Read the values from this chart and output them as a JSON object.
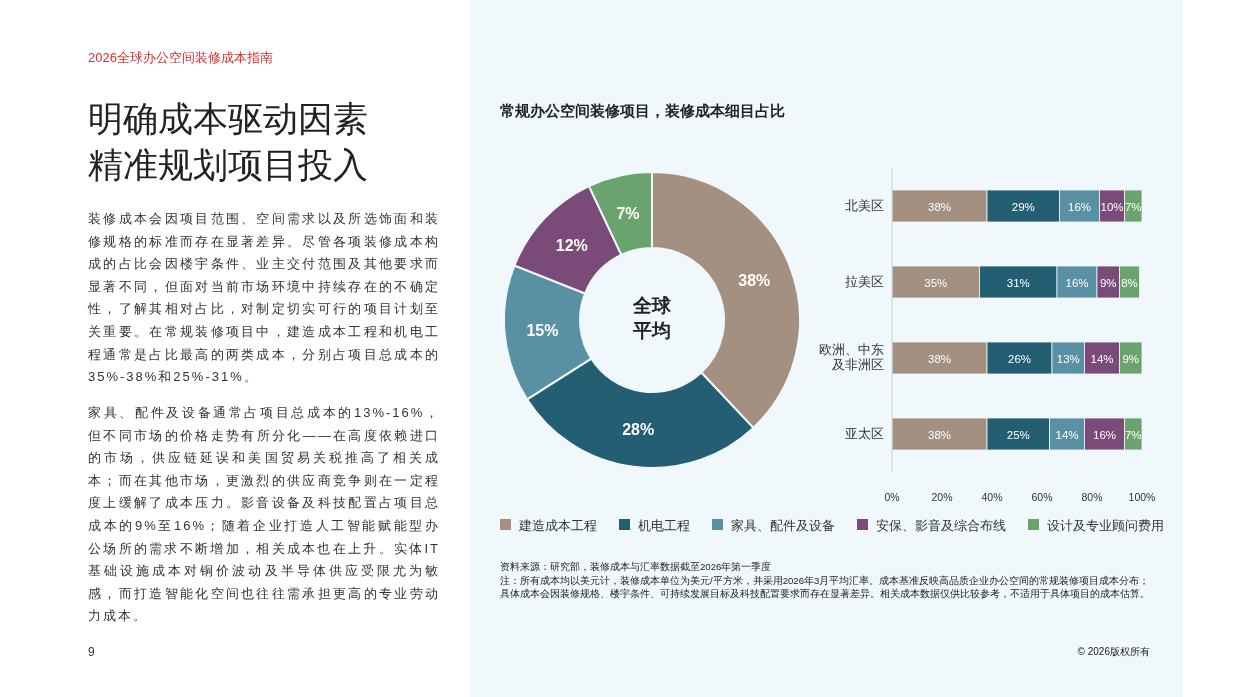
{
  "chart_data": [
    {
      "type": "other",
      "subtitle": "2026全球办公空间装修成本指南",
      "title": "明确成本驱动因素精准规划项目投入",
      "annotations": [
        "装修成本会因项目范围、空间需求以及所选饰面和装修规格的标准而存在显著差异。尽管各项装修成本构成的占比会因楼宇条件、业主交付范围及其他要求而显著不同，但面对当前市场环境中持续存在的不确定性，了解其相对占比，对制定切实可行的项目计划至关重要。在常规装修项目中，建造成本工程和机电工程通常是占比最高的两类成本，分别占项目总成本的35%-38%和25%-31%。",
        "家具、配件及设备通常占项目总成本的13%-16%，但不同市场的价格走势有所分化——在高度依赖进口的市场，供应链延误和美国贸易关税推高了相关成本；而在其他市场，更激烈的供应商竞争则在一定程度上缓解了成本压力。影音设备及科技配置占项目总成本的9%至16%；随着企业打造人工智能赋能型办公场所的需求不断增加，相关成本也在上升。实体IT基础设施成本对铜价波动及半导体供应受限尤为敏感，而打造智能化空间也往往需承担更高的专业劳动力成本。",
        "9"
      ]
    },
    {
      "type": "donut",
      "title": "常规办公空间装修项目，装修成本细目占比",
      "annotations": [
        "全球平均"
      ],
      "legend": "bottom",
      "categories": [
        "建造成本工程",
        "机电工程",
        "家具、配件及设备",
        "安保、影音及综合布线",
        "设计及专业顾问费用"
      ],
      "values": [
        38,
        28,
        15,
        12,
        7
      ],
      "value_labels": [
        "38%",
        "28%",
        "15%",
        "12%",
        "7%"
      ],
      "colors": [
        "#a39081",
        "#245e73",
        "#5a90a3",
        "#7a4a78",
        "#6aa36d"
      ]
    },
    {
      "type": "bar",
      "orientation": "horizontal",
      "stacked": true,
      "categories": [
        "北美区",
        "拉美区",
        "欧洲、中东及非洲区",
        "亚太区"
      ],
      "xlim": [
        0,
        100
      ],
      "xticks": [
        {
          "value": 0,
          "label": "0%"
        },
        {
          "value": 20,
          "label": "20%"
        },
        {
          "value": 40,
          "label": "40%"
        },
        {
          "value": 60,
          "label": "60%"
        },
        {
          "value": 80,
          "label": "80%"
        },
        {
          "value": 100,
          "label": "100%"
        }
      ],
      "series": [
        {
          "color": "#a39081",
          "values": [
            38,
            35,
            38,
            38
          ],
          "value_labels": [
            "38%",
            "35%",
            "38%",
            "38%"
          ]
        },
        {
          "color": "#245e73",
          "values": [
            29,
            31,
            26,
            25
          ],
          "value_labels": [
            "29%",
            "31%",
            "26%",
            "25%"
          ]
        },
        {
          "color": "#5a90a3",
          "values": [
            16,
            16,
            13,
            14
          ],
          "value_labels": [
            "16%",
            "16%",
            "13%",
            "14%"
          ]
        },
        {
          "color": "#7a4a78",
          "values": [
            10,
            9,
            14,
            16
          ],
          "value_labels": [
            "10%",
            "9%",
            "14%",
            "16%"
          ]
        },
        {
          "color": "#6aa36d",
          "values": [
            7,
            8,
            9,
            7
          ],
          "value_labels": [
            "7%",
            "8%",
            "9%",
            "7%"
          ]
        }
      ],
      "annotations": [
        "资料来源：研究部，装修成本与汇率数据截至2026年第一季度",
        "注：所有成本均以美元计，装修成本单位为美元/平方米，并采用2026年3月平均汇率。成本基准反映高品质企业办公空间的常规装修项目成本分布；具体成本会因装修规格、楼宇条件、可持续发展目标及科技配置要求而存在显著差异。相关成本数据仅供比较参考，不适用于具体项目的成本估算。",
        "© 2026版权所有"
      ]
    }
  ]
}
